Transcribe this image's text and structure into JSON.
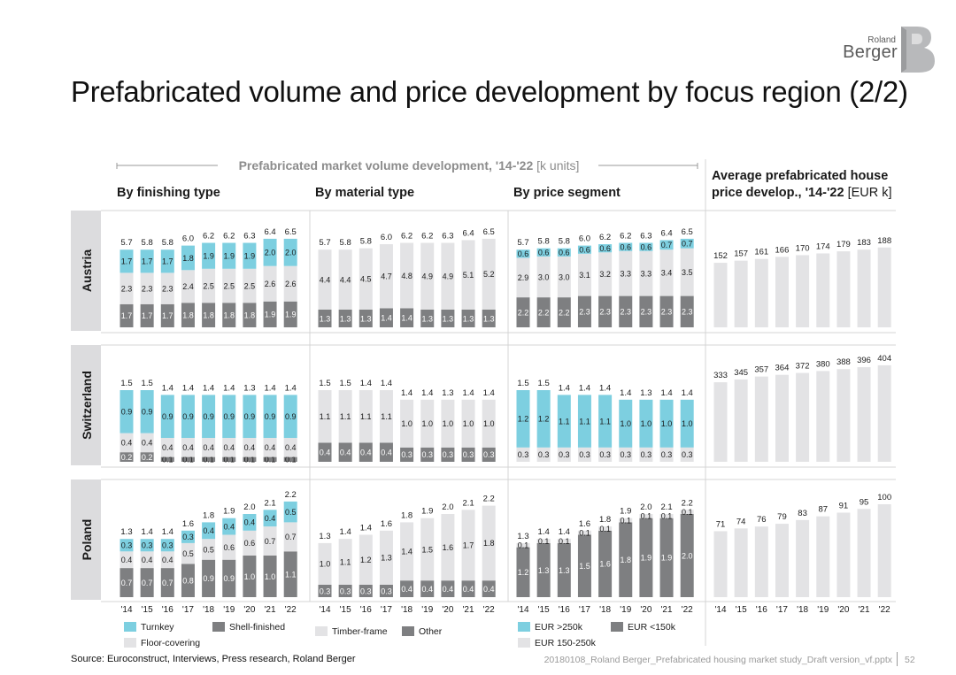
{
  "title": "Prefabricated volume and price development by focus region (2/2)",
  "logo": {
    "line1": "Roland",
    "line2": "Berger"
  },
  "volume_header": {
    "bold": "Prefabricated market volume development, '14-'22",
    "unit": "[k units]"
  },
  "price_header": {
    "line1": "Average prefabricated house",
    "line2_bold": "price develop., '14-'22",
    "line2_unit": "[EUR k]"
  },
  "sections": [
    "By finishing type",
    "By material type",
    "By price segment"
  ],
  "regions": [
    "Austria",
    "Switzerland",
    "Poland"
  ],
  "years": [
    "'14",
    "'15",
    "'16",
    "'17",
    "'18",
    "'19",
    "'20",
    "'21",
    "'22"
  ],
  "colors": {
    "turquoise": "#7dcfe0",
    "light_grey": "#e3e3e5",
    "dark_grey": "#7e7f81",
    "axis": "#bbbbbb"
  },
  "legends": {
    "finishing": [
      "Turnkey",
      "Shell-finished",
      "Floor-covering"
    ],
    "material": [
      "Timber-frame",
      "Other"
    ],
    "price": [
      "EUR >250k",
      "EUR <150k",
      "EUR 150-250k"
    ]
  },
  "footer": {
    "source": "Source: Euroconstruct, Interviews, Press research, Roland Berger",
    "file": "20180108_Roland Berger_Prefabricated housing market study_Draft version_vf.pptx",
    "page": "52"
  },
  "chart_data": [
    {
      "type": "bar",
      "stacked": true,
      "region": "Austria",
      "section": "By finishing type",
      "totals": [
        "5.7",
        "5.8",
        "5.8",
        "6.0",
        "6.2",
        "6.2",
        "6.3",
        "6.4",
        "6.5"
      ],
      "series": [
        {
          "name": "Shell-finished",
          "color": "dark",
          "values": [
            "1.7",
            "1.7",
            "1.7",
            "1.8",
            "1.8",
            "1.8",
            "1.8",
            "1.9",
            "1.9"
          ]
        },
        {
          "name": "Floor-covering",
          "color": "light",
          "values": [
            "2.3",
            "2.3",
            "2.3",
            "2.4",
            "2.5",
            "2.5",
            "2.5",
            "2.6",
            "2.6"
          ]
        },
        {
          "name": "Turnkey",
          "color": "turq",
          "values": [
            "1.7",
            "1.7",
            "1.7",
            "1.8",
            "1.9",
            "1.9",
            "1.9",
            "2.0",
            "2.0"
          ]
        }
      ]
    },
    {
      "type": "bar",
      "stacked": true,
      "region": "Austria",
      "section": "By material type",
      "totals": [
        "5.7",
        "5.8",
        "5.8",
        "6.0",
        "6.2",
        "6.2",
        "6.3",
        "6.4",
        "6.5"
      ],
      "series": [
        {
          "name": "Other",
          "color": "dark",
          "values": [
            "1.3",
            "1.3",
            "1.3",
            "1.4",
            "1.4",
            "1.3",
            "1.3",
            "1.3",
            "1.3"
          ]
        },
        {
          "name": "Timber-frame",
          "color": "light",
          "values": [
            "4.4",
            "4.4",
            "4.5",
            "4.7",
            "4.8",
            "4.9",
            "4.9",
            "5.1",
            "5.2"
          ]
        }
      ]
    },
    {
      "type": "bar",
      "stacked": true,
      "region": "Austria",
      "section": "By price segment",
      "totals": [
        "5.7",
        "5.8",
        "5.8",
        "6.0",
        "6.2",
        "6.2",
        "6.3",
        "6.4",
        "6.5"
      ],
      "series": [
        {
          "name": "EUR <150k",
          "color": "dark",
          "values": [
            "2.2",
            "2.2",
            "2.2",
            "2.3",
            "2.3",
            "2.3",
            "2.3",
            "2.3",
            "2.3"
          ]
        },
        {
          "name": "EUR 150-250k",
          "color": "light",
          "values": [
            "2.9",
            "3.0",
            "3.0",
            "3.1",
            "3.2",
            "3.3",
            "3.3",
            "3.4",
            "3.5"
          ]
        },
        {
          "name": "EUR >250k",
          "color": "turq",
          "values": [
            "0.6",
            "0.6",
            "0.6",
            "0.6",
            "0.6",
            "0.6",
            "0.6",
            "0.7",
            "0.7"
          ]
        }
      ]
    },
    {
      "type": "bar",
      "region": "Austria",
      "section": "Average price",
      "values": [
        "152",
        "157",
        "161",
        "166",
        "170",
        "174",
        "179",
        "183",
        "188"
      ]
    },
    {
      "type": "bar",
      "stacked": true,
      "region": "Switzerland",
      "section": "By finishing type",
      "totals": [
        "1.5",
        "1.5",
        "1.4",
        "1.4",
        "1.4",
        "1.4",
        "1.3",
        "1.4",
        "1.4"
      ],
      "series": [
        {
          "name": "Shell-finished",
          "color": "dark",
          "values": [
            "0.2",
            "0.2",
            "0.1",
            "0.1",
            "0.1",
            "0.1",
            "0.1",
            "0.1",
            "0.1"
          ]
        },
        {
          "name": "Floor-covering",
          "color": "light",
          "values": [
            "0.4",
            "0.4",
            "0.4",
            "0.4",
            "0.4",
            "0.4",
            "0.4",
            "0.4",
            "0.4"
          ]
        },
        {
          "name": "Turnkey",
          "color": "turq",
          "values": [
            "0.9",
            "0.9",
            "0.9",
            "0.9",
            "0.9",
            "0.9",
            "0.9",
            "0.9",
            "0.9"
          ]
        }
      ]
    },
    {
      "type": "bar",
      "stacked": true,
      "region": "Switzerland",
      "section": "By material type",
      "totals": [
        "1.5",
        "1.5",
        "1.4",
        "1.4",
        "1.4",
        "1.4",
        "1.3",
        "1.4",
        "1.4"
      ],
      "series": [
        {
          "name": "Other",
          "color": "dark",
          "values": [
            "0.4",
            "0.4",
            "0.4",
            "0.4",
            "0.3",
            "0.3",
            "0.3",
            "0.3",
            "0.3"
          ]
        },
        {
          "name": "Timber-frame",
          "color": "light",
          "values": [
            "1.1",
            "1.1",
            "1.1",
            "1.1",
            "1.0",
            "1.0",
            "1.0",
            "1.0",
            "1.0"
          ]
        }
      ]
    },
    {
      "type": "bar",
      "stacked": true,
      "region": "Switzerland",
      "section": "By price segment",
      "totals": [
        "1.5",
        "1.5",
        "1.4",
        "1.4",
        "1.4",
        "1.4",
        "1.3",
        "1.4",
        "1.4"
      ],
      "series": [
        {
          "name": "EUR 150-250k",
          "color": "light",
          "values": [
            "0.3",
            "0.3",
            "0.3",
            "0.3",
            "0.3",
            "0.3",
            "0.3",
            "0.3",
            "0.3"
          ]
        },
        {
          "name": "EUR >250k",
          "color": "turq",
          "values": [
            "1.2",
            "1.2",
            "1.1",
            "1.1",
            "1.1",
            "1.0",
            "1.0",
            "1.0",
            "1.0"
          ]
        }
      ]
    },
    {
      "type": "bar",
      "region": "Switzerland",
      "section": "Average price",
      "values": [
        "333",
        "345",
        "357",
        "364",
        "372",
        "380",
        "388",
        "396",
        "404"
      ]
    },
    {
      "type": "bar",
      "stacked": true,
      "region": "Poland",
      "section": "By finishing type",
      "totals": [
        "1.3",
        "1.4",
        "1.4",
        "1.6",
        "1.8",
        "1.9",
        "2.0",
        "2.1",
        "2.2"
      ],
      "series": [
        {
          "name": "Shell-finished",
          "color": "dark",
          "values": [
            "0.7",
            "0.7",
            "0.7",
            "0.8",
            "0.9",
            "0.9",
            "1.0",
            "1.0",
            "1.1"
          ]
        },
        {
          "name": "Floor-covering",
          "color": "light",
          "values": [
            "0.4",
            "0.4",
            "0.4",
            "0.5",
            "0.5",
            "0.6",
            "0.6",
            "0.7",
            "0.7"
          ]
        },
        {
          "name": "Turnkey",
          "color": "turq",
          "values": [
            "0.3",
            "0.3",
            "0.3",
            "0.3",
            "0.4",
            "0.4",
            "0.4",
            "0.4",
            "0.5"
          ]
        }
      ]
    },
    {
      "type": "bar",
      "stacked": true,
      "region": "Poland",
      "section": "By material type",
      "totals": [
        "1.3",
        "1.4",
        "1.4",
        "1.6",
        "1.8",
        "1.9",
        "2.0",
        "2.1",
        "2.2"
      ],
      "series": [
        {
          "name": "Other",
          "color": "dark",
          "values": [
            "0.3",
            "0.3",
            "0.3",
            "0.3",
            "0.4",
            "0.4",
            "0.4",
            "0.4",
            "0.4"
          ]
        },
        {
          "name": "Timber-frame",
          "color": "light",
          "values": [
            "1.0",
            "1.1",
            "1.2",
            "1.3",
            "1.4",
            "1.5",
            "1.6",
            "1.7",
            "1.8"
          ]
        }
      ]
    },
    {
      "type": "bar",
      "stacked": true,
      "region": "Poland",
      "section": "By price segment",
      "totals": [
        "1.3",
        "1.4",
        "1.4",
        "1.6",
        "1.8",
        "1.9",
        "2.0",
        "2.1",
        "2.2"
      ],
      "series": [
        {
          "name": "EUR <150k",
          "color": "dark",
          "values": [
            "1.2",
            "1.3",
            "1.3",
            "1.5",
            "1.6",
            "1.8",
            "1.9",
            "1.9",
            "2.0"
          ]
        },
        {
          "name": "EUR 150-250k",
          "color": "light",
          "values": [
            "0.1",
            "0.1",
            "0.1",
            "0.1",
            "0.1",
            "0.1",
            "0.1",
            "0.1",
            "0.1"
          ]
        }
      ]
    },
    {
      "type": "bar",
      "region": "Poland",
      "section": "Average price",
      "values": [
        "71",
        "74",
        "76",
        "79",
        "83",
        "87",
        "91",
        "95",
        "100"
      ]
    }
  ]
}
